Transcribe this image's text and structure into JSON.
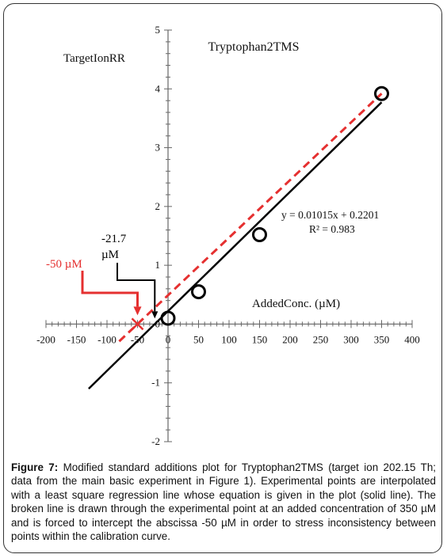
{
  "chart_data": {
    "type": "scatter",
    "title": "Tryptophan2TMS",
    "xlabel": "AddedConc. (µM)",
    "ylabel": "TargetIonRR",
    "xlim": [
      -200,
      400
    ],
    "ylim": [
      -2,
      5
    ],
    "x_ticks": [
      -200,
      -150,
      -100,
      -50,
      0,
      50,
      100,
      150,
      200,
      250,
      300,
      350,
      400
    ],
    "y_ticks": [
      -2,
      -1,
      0,
      1,
      2,
      3,
      4,
      5
    ],
    "grid": false,
    "points": [
      {
        "x": 0,
        "y": 0.1
      },
      {
        "x": 50,
        "y": 0.55
      },
      {
        "x": 150,
        "y": 1.52
      },
      {
        "x": 350,
        "y": 3.92
      }
    ],
    "regression": {
      "slope": 0.01015,
      "intercept": 0.2201,
      "x_range": [
        -130,
        350
      ]
    },
    "forced_line": {
      "x_range": [
        -80,
        350
      ],
      "points": [
        [
          -50,
          0
        ],
        [
          350,
          3.92
        ]
      ]
    },
    "equation_label": "y = 0.01015x + 0.2201",
    "r2_label": "R² = 0.983",
    "annotations": [
      {
        "label": "-21.7 µM",
        "x": -21.7,
        "color": "#000000"
      },
      {
        "label": "-50 µM",
        "x": -50,
        "color": "#e53030"
      }
    ],
    "colors": {
      "regression": "#000000",
      "forced": "#e53030",
      "marker": "#000000"
    }
  },
  "caption": {
    "label": "Figure 7:",
    "text": " Modified standard additions plot for Tryptophan2TMS (target ion 202.15 Th; data from the main basic experiment in Figure 1). Experimental points are interpolated with a least square regression line whose equation is given in the plot (solid line). The broken line is drawn through the experimental point at an added concentration of 350 µM and is forced to intercept the abscissa -50 µM in order to stress inconsistency between points within the calibration curve."
  }
}
